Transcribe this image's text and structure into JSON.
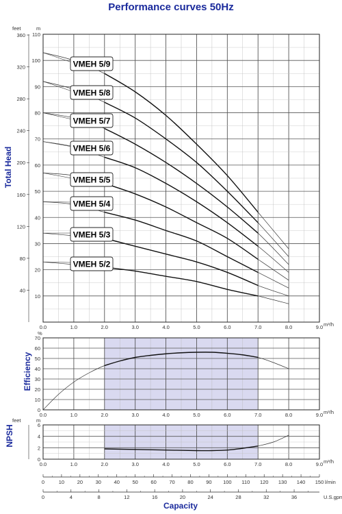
{
  "title": "Performance curves 50Hz",
  "chart_data": [
    {
      "type": "line",
      "name": "head",
      "ylabel": "Total Head",
      "left_unit": "feet",
      "right_unit": "m",
      "x_unit_label": "m³/h",
      "xlim": [
        0,
        9
      ],
      "ylim": [
        0,
        110
      ],
      "x_ticks": [
        "0.0",
        "1.0",
        "2.0",
        "3.0",
        "4.0",
        "5.0",
        "6.0",
        "7.0",
        "8.0",
        "9.0"
      ],
      "m_ticks": [
        "10",
        "20",
        "30",
        "40",
        "50",
        "60",
        "70",
        "80",
        "90",
        "100",
        "110"
      ],
      "feet_ticks": [
        "40",
        "80",
        "120",
        "160",
        "200",
        "240",
        "280",
        "320",
        "360"
      ],
      "grid": true,
      "series": [
        {
          "name": "VMEH 5/9",
          "x": [
            0,
            1,
            2,
            3,
            4,
            5,
            6,
            7,
            8
          ],
          "y": [
            103,
            100,
            95,
            88,
            79,
            68,
            56,
            42,
            28
          ]
        },
        {
          "name": "VMEH 5/8",
          "x": [
            0,
            1,
            2,
            3,
            4,
            5,
            6,
            7,
            8
          ],
          "y": [
            92,
            89,
            84,
            78,
            70,
            61,
            50,
            38,
            25
          ]
        },
        {
          "name": "VMEH 5/7",
          "x": [
            0,
            1,
            2,
            3,
            4,
            5,
            6,
            7,
            8
          ],
          "y": [
            80,
            78,
            74,
            68,
            61,
            53,
            44,
            34,
            22
          ]
        },
        {
          "name": "VMEH 5/6",
          "x": [
            0,
            1,
            2,
            3,
            4,
            5,
            6,
            7,
            8
          ],
          "y": [
            69,
            67,
            63,
            59,
            53,
            46,
            38,
            29,
            19
          ]
        },
        {
          "name": "VMEH 5/5",
          "x": [
            0,
            1,
            2,
            3,
            4,
            5,
            6,
            7,
            8
          ],
          "y": [
            57,
            56,
            53,
            49,
            44,
            38,
            32,
            24,
            16
          ]
        },
        {
          "name": "VMEH 5/4",
          "x": [
            0,
            1,
            2,
            3,
            4,
            5,
            6,
            7,
            8
          ],
          "y": [
            46,
            45,
            42,
            39,
            35,
            31,
            25,
            19,
            13
          ]
        },
        {
          "name": "VMEH 5/3",
          "x": [
            0,
            1,
            2,
            3,
            4,
            5,
            6,
            7,
            8
          ],
          "y": [
            34,
            33,
            32,
            29,
            26,
            23,
            19,
            14,
            10
          ]
        },
        {
          "name": "VMEH 5/2",
          "x": [
            0,
            1,
            2,
            3,
            4,
            5,
            6,
            7,
            8
          ],
          "y": [
            23,
            22,
            21,
            19.5,
            17.5,
            15.5,
            12.5,
            10,
            7
          ]
        }
      ]
    },
    {
      "type": "line",
      "name": "efficiency",
      "ylabel": "Efficiency",
      "y_unit": "%",
      "x_unit_label": "m³/h",
      "xlim": [
        0,
        9
      ],
      "ylim": [
        0,
        70
      ],
      "x_ticks": [
        "0.0",
        "1.0",
        "2.0",
        "3.0",
        "4.0",
        "5.0",
        "6.0",
        "7.0",
        "8.0",
        "9.0"
      ],
      "y_ticks": [
        "0",
        "10",
        "20",
        "30",
        "40",
        "50",
        "60",
        "70"
      ],
      "shaded_x_range": [
        2,
        7
      ],
      "shade_color": "#d9d9f0",
      "grid": true,
      "series": [
        {
          "x": [
            0,
            0.5,
            1,
            1.5,
            2,
            2.5,
            3,
            3.5,
            4,
            4.5,
            5,
            5.5,
            6,
            6.5,
            7,
            7.5,
            8
          ],
          "y": [
            0,
            15,
            27,
            36,
            43,
            47.5,
            51,
            53,
            54.5,
            55.5,
            56,
            56,
            55,
            53.5,
            51,
            46,
            40
          ]
        }
      ]
    },
    {
      "type": "line",
      "name": "npsh",
      "ylabel": "NPSH",
      "left_unit": "feet",
      "right_unit": "m",
      "x_unit_label": "m³/h",
      "xlim": [
        0,
        9
      ],
      "ylim": [
        0,
        6
      ],
      "x_ticks": [
        "0.0",
        "1.0",
        "2.0",
        "3.0",
        "4.0",
        "5.0",
        "6.0",
        "7.0",
        "8.0",
        "9.0"
      ],
      "y_ticks": [
        "0",
        "2",
        "4",
        "6"
      ],
      "shaded_x_range": [
        2,
        7
      ],
      "shade_color": "#d9d9f0",
      "grid": true,
      "series": [
        {
          "x": [
            2,
            3,
            4,
            5,
            5.5,
            6,
            6.5,
            7,
            7.5,
            8
          ],
          "y": [
            1.8,
            1.7,
            1.6,
            1.5,
            1.5,
            1.6,
            1.9,
            2.3,
            3.0,
            4.2
          ]
        }
      ]
    }
  ],
  "lmin_axis": {
    "unit": "l/min",
    "ticks": [
      "0",
      "10",
      "20",
      "30",
      "40",
      "50",
      "60",
      "70",
      "80",
      "90",
      "100",
      "110",
      "120",
      "130",
      "140",
      "150"
    ],
    "max": 150
  },
  "usgpm_axis": {
    "unit": "U.S.gpm",
    "ticks": [
      "0",
      "4",
      "8",
      "12",
      "16",
      "20",
      "24",
      "28",
      "32",
      "36"
    ],
    "max": 39.6
  },
  "capacity_label": "Capacity"
}
